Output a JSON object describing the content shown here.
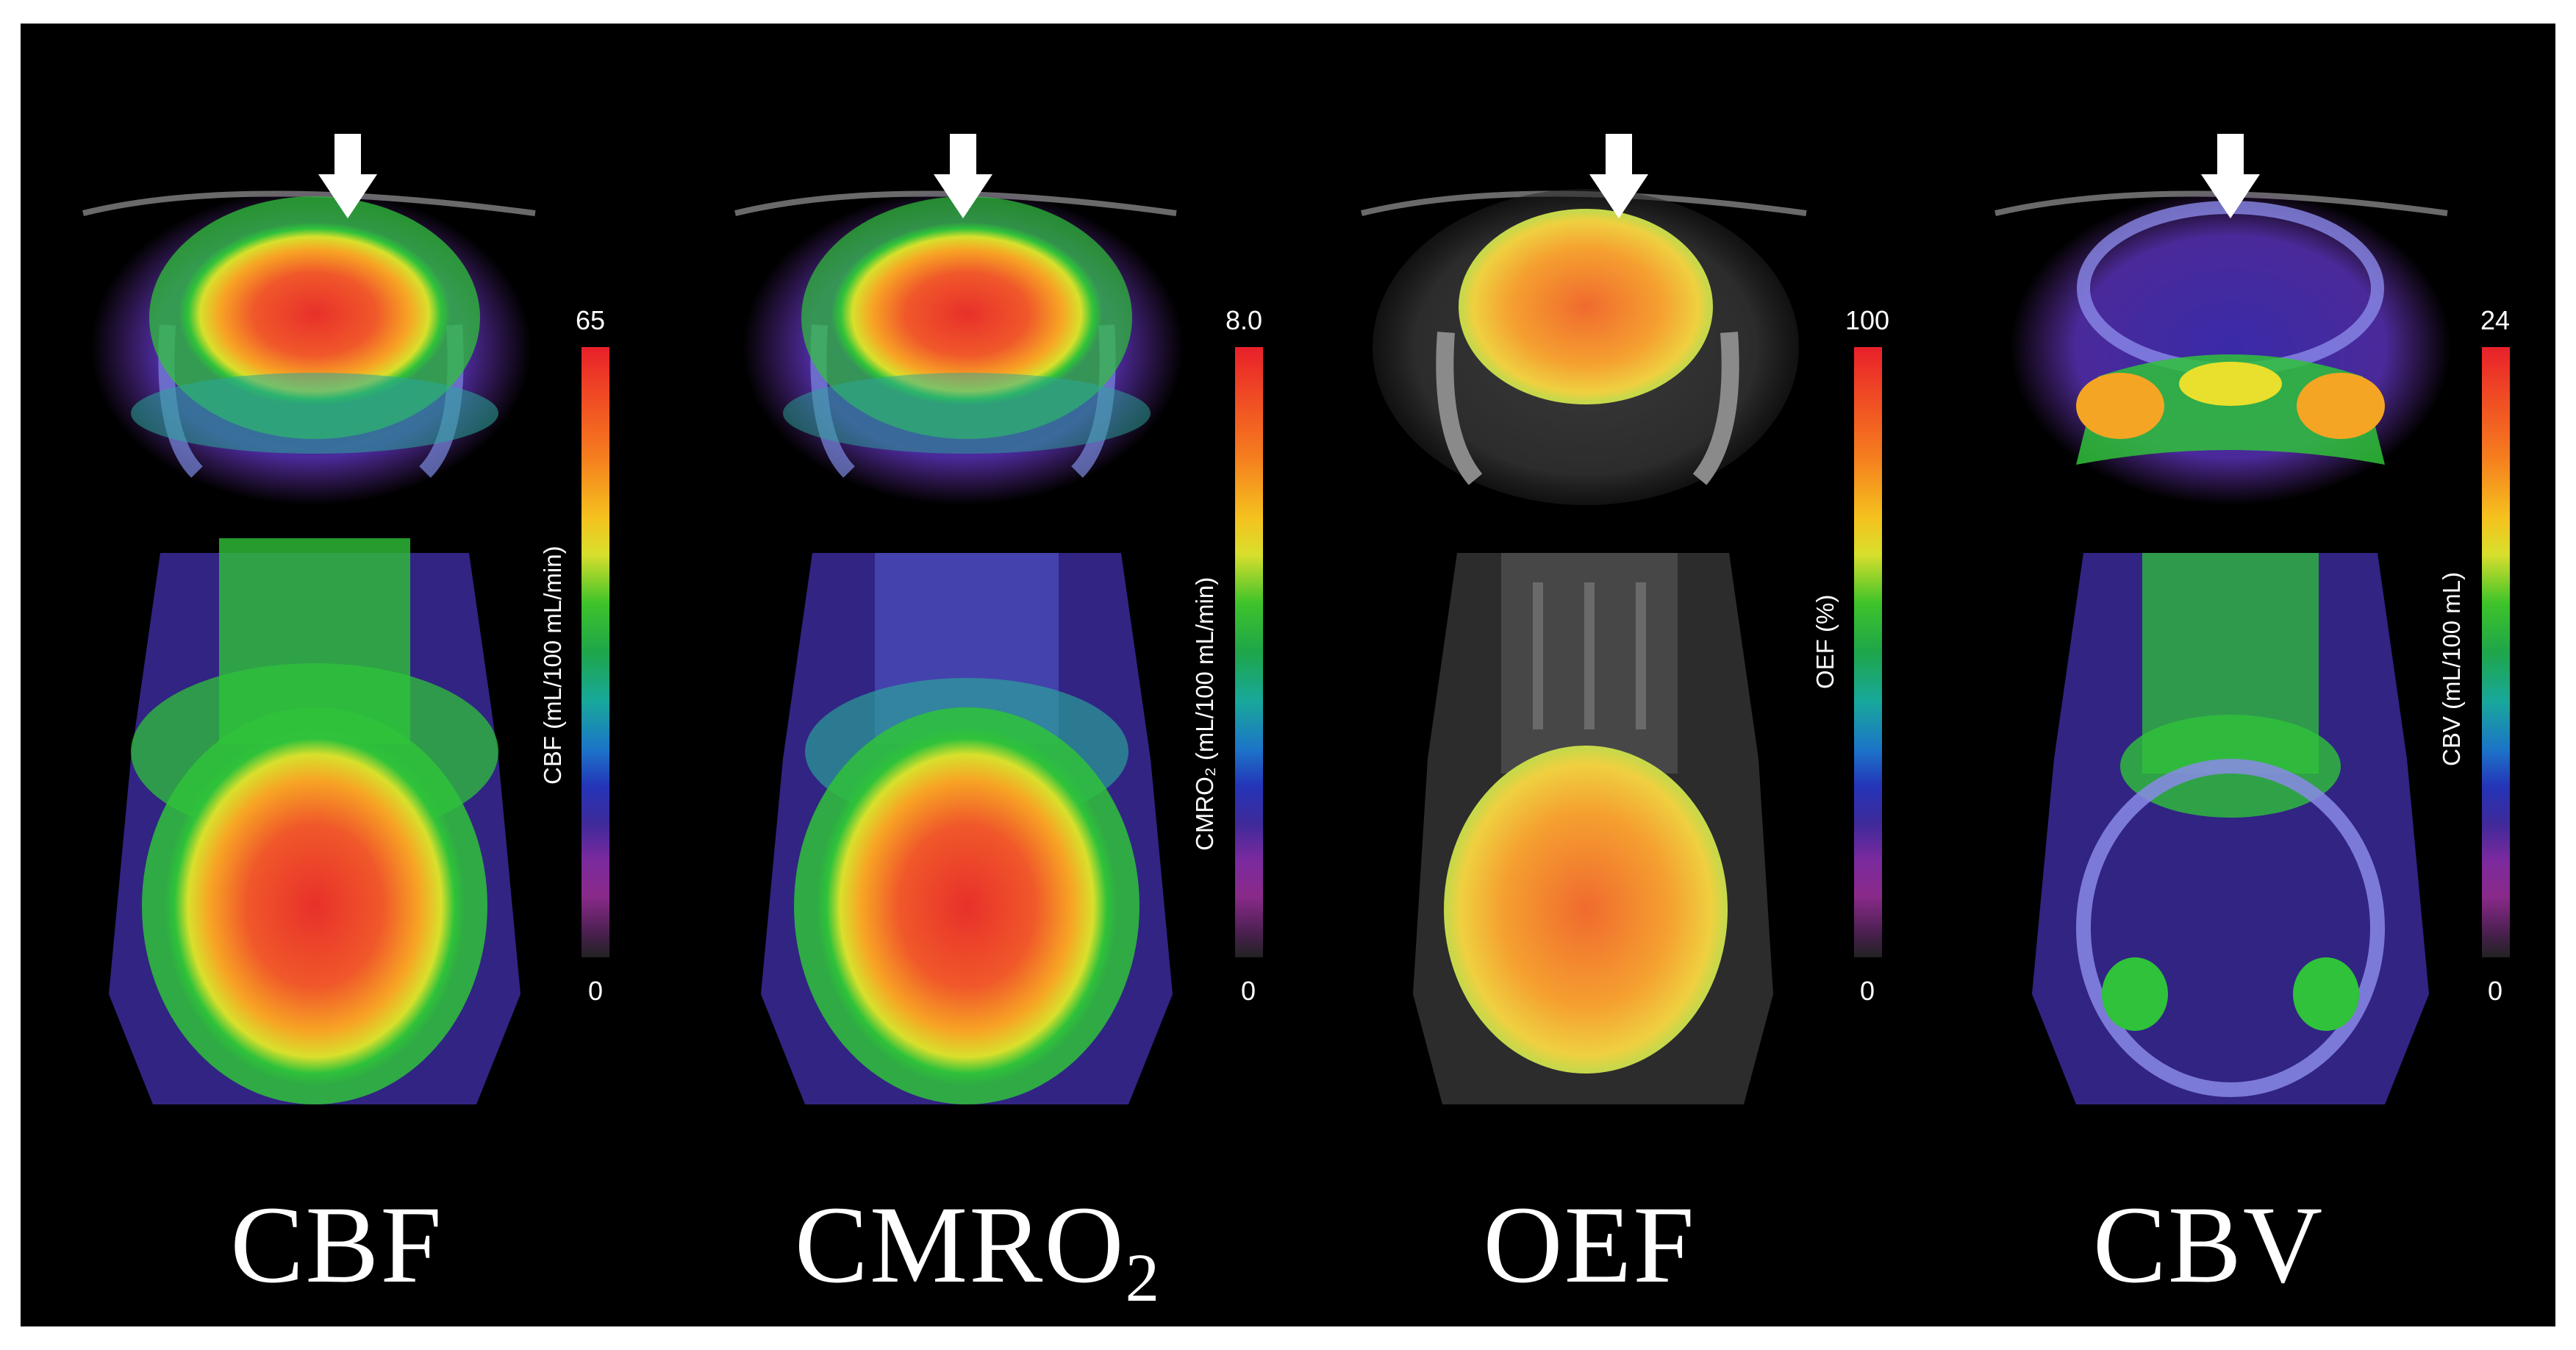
{
  "panels": [
    {
      "title": "CBF",
      "title_sub": "",
      "scale_max": "65",
      "scale_min": "0",
      "scale_label": "CBF (mL/100 mL/min)"
    },
    {
      "title": "CMRO",
      "title_sub": "2",
      "scale_max": "8.0",
      "scale_min": "0",
      "scale_label": "CMRO₂ (mL/100 mL/min)"
    },
    {
      "title": "OEF",
      "title_sub": "",
      "scale_max": "100",
      "scale_min": "0",
      "scale_label": "OEF (%)"
    },
    {
      "title": "CBV",
      "title_sub": "",
      "scale_max": "24",
      "scale_min": "0",
      "scale_label": "CBV (mL/100 mL)"
    }
  ],
  "colors": {
    "background": "#000000",
    "text": "#ffffff",
    "hot": "#e8202a",
    "warm": "#f5c21e",
    "mid": "#3ec32a",
    "cool": "#2434b8",
    "low": "#7a2a9e"
  }
}
